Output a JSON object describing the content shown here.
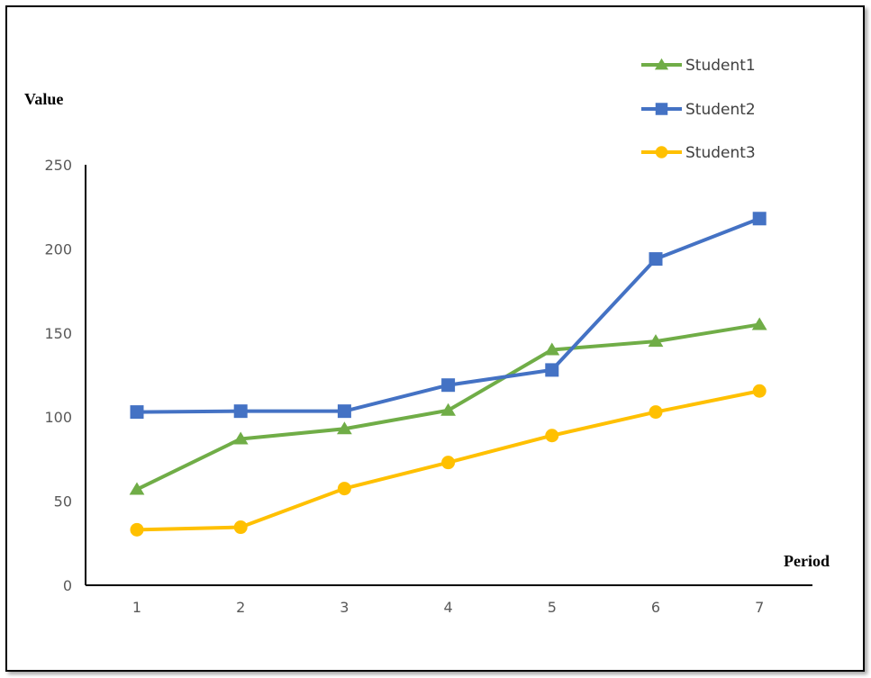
{
  "chart_data": {
    "type": "line",
    "title": "",
    "xlabel": "Period",
    "ylabel": "Value",
    "x": [
      1,
      2,
      3,
      4,
      5,
      6,
      7
    ],
    "xticks": [
      "1",
      "2",
      "3",
      "4",
      "5",
      "6",
      "7"
    ],
    "yticks": [
      "0",
      "50",
      "100",
      "150",
      "200",
      "250"
    ],
    "ylim": [
      0,
      250
    ],
    "grid": false,
    "legend": "top-right",
    "series": [
      {
        "name": "Student1",
        "marker": "triangle",
        "color": "#70ad47",
        "values": [
          57,
          87,
          93,
          104,
          140,
          145,
          155
        ]
      },
      {
        "name": "Student2",
        "marker": "square",
        "color": "#4472c4",
        "values": [
          103,
          103.5,
          103.5,
          119,
          128,
          194,
          218
        ]
      },
      {
        "name": "Student3",
        "marker": "circle",
        "color": "#ffc000",
        "values": [
          33,
          34.5,
          57.5,
          73,
          89,
          103,
          115.5
        ]
      }
    ]
  }
}
